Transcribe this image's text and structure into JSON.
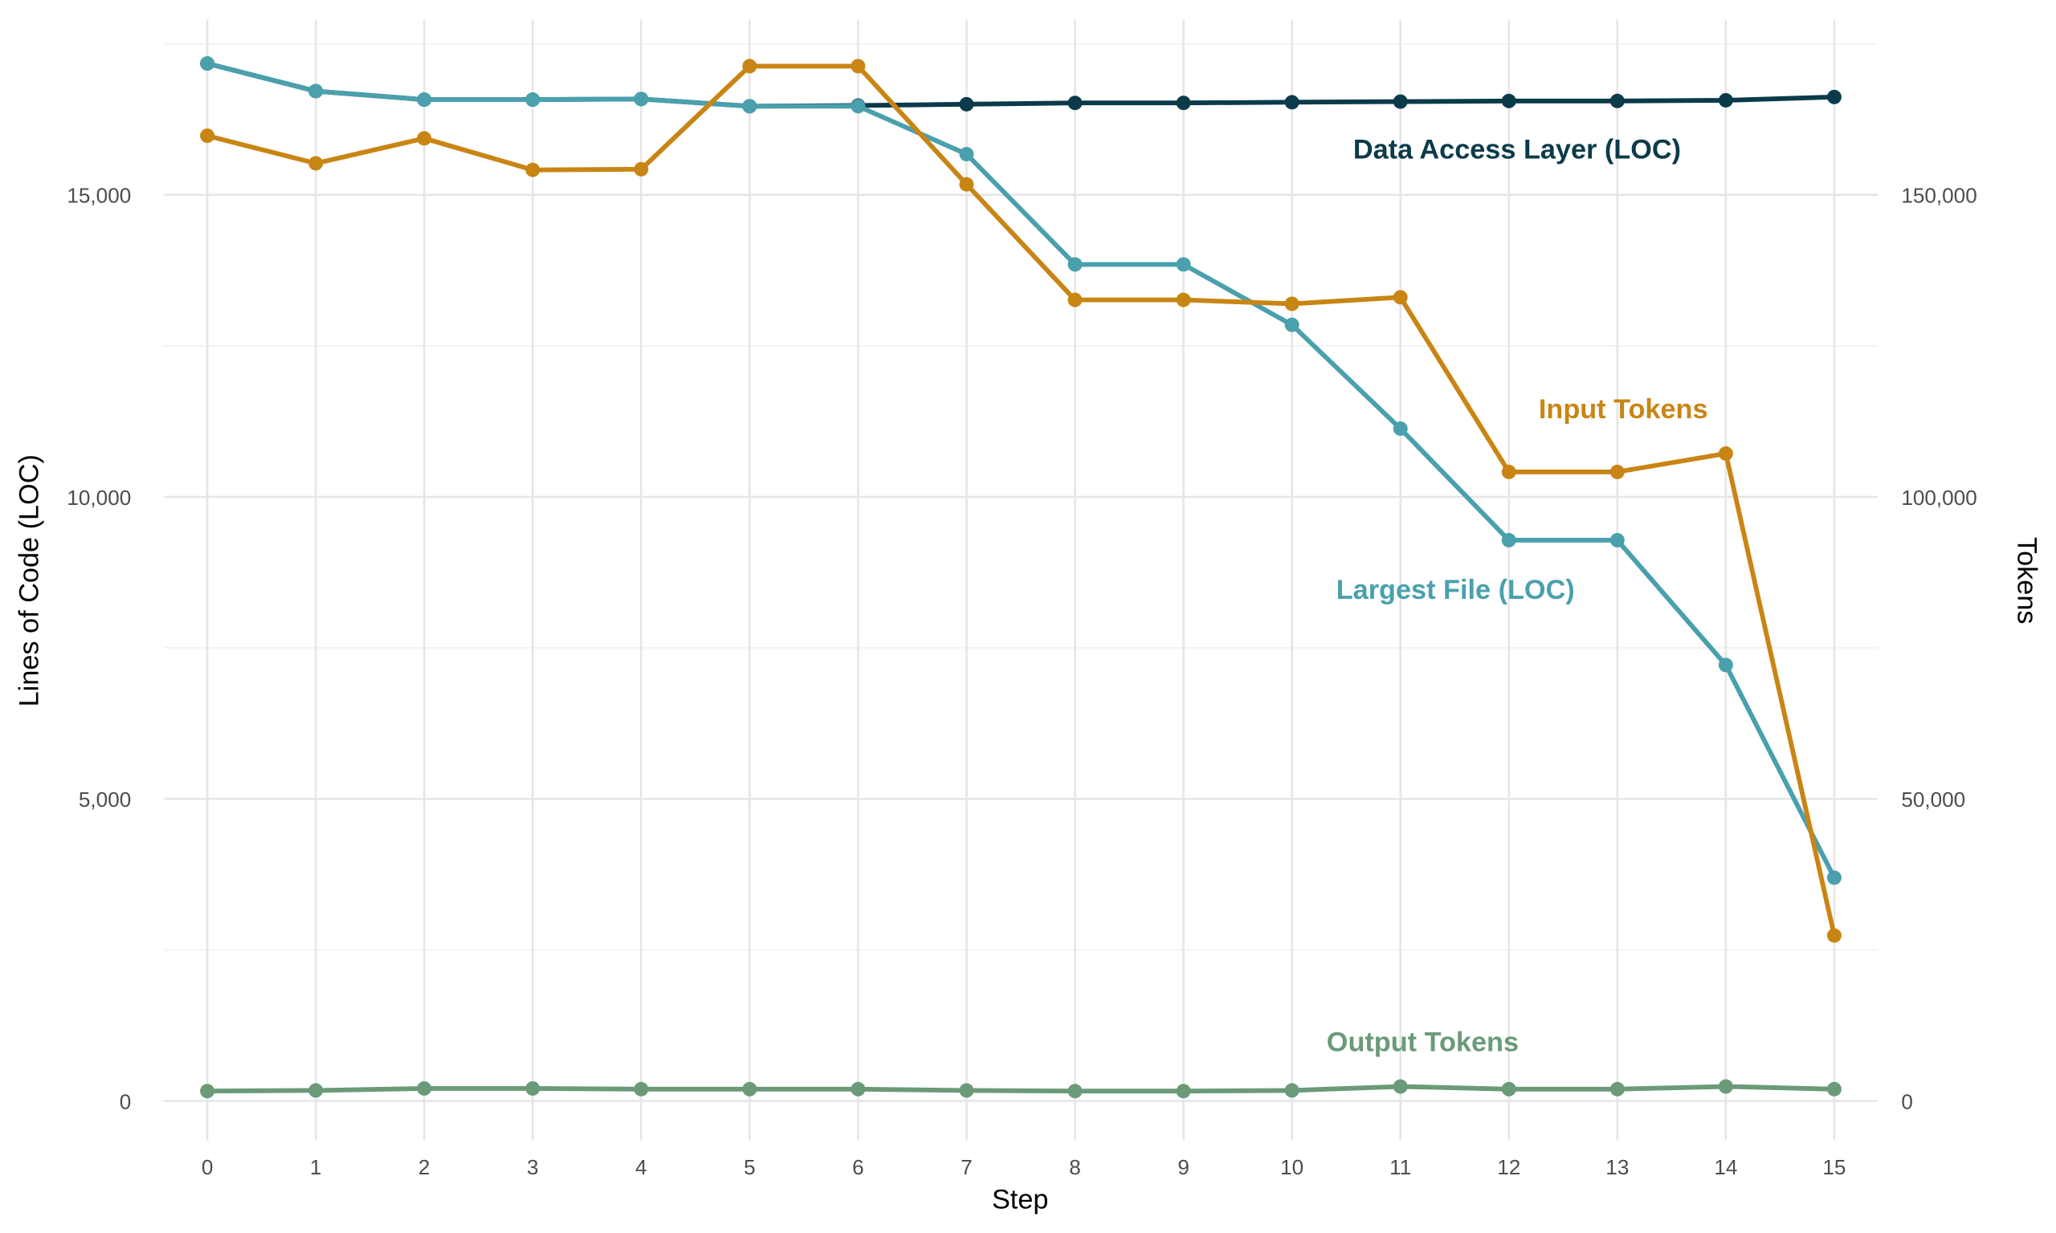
{
  "chart_data": {
    "type": "line",
    "x_label": "Step",
    "y_label": "Lines of Code (LOC)",
    "y2_label": "Tokens",
    "x": [
      0,
      1,
      2,
      3,
      4,
      5,
      6,
      7,
      8,
      9,
      10,
      11,
      12,
      13,
      14,
      15
    ],
    "xlim": [
      -0.4,
      15.4
    ],
    "xticks": [
      0,
      1,
      2,
      3,
      4,
      5,
      6,
      7,
      8,
      9,
      10,
      11,
      12,
      13,
      14,
      15
    ],
    "ylim": [
      -650,
      17900
    ],
    "yticks": [
      0,
      {
        "value": 5000,
        "label": "5,000"
      },
      {
        "value": 10000,
        "label": "10,000"
      },
      {
        "value": 15000,
        "label": "15,000"
      }
    ],
    "y_minor_ticks": [
      2500,
      7500,
      12500,
      17500
    ],
    "y2lim": [
      -6500,
      179000
    ],
    "y2ticks": [
      0,
      {
        "value": 50000,
        "label": "50,000"
      },
      {
        "value": 100000,
        "label": "100,000"
      },
      {
        "value": 150000,
        "label": "150,000"
      }
    ],
    "grid": true,
    "series": [
      {
        "name": "Data Access Layer (LOC)",
        "color": "#0b3b4a",
        "axis": "y",
        "values": [
          17174,
          16717,
          16576,
          16576,
          16587,
          16467,
          16478,
          16500,
          16522,
          16522,
          16533,
          16543,
          16554,
          16554,
          16565,
          16620
        ]
      },
      {
        "name": "Largest File (LOC)",
        "color": "#4aa0ad",
        "axis": "y",
        "values": [
          17174,
          16717,
          16576,
          16576,
          16587,
          16467,
          16467,
          15674,
          13848,
          13848,
          12848,
          11130,
          9283,
          9283,
          7217,
          3696
        ]
      },
      {
        "name": "Input Tokens",
        "color": "#c98514",
        "axis": "y2",
        "values": [
          159783,
          155217,
          159348,
          154130,
          154239,
          171304,
          171304,
          151739,
          132609,
          132609,
          131957,
          133043,
          104130,
          104130,
          107174,
          27391
        ]
      },
      {
        "name": "Output Tokens",
        "color": "#6b9a78",
        "axis": "y2",
        "values": [
          1630,
          1739,
          2065,
          2065,
          1957,
          1957,
          1957,
          1739,
          1630,
          1630,
          1739,
          2391,
          1957,
          1957,
          2391,
          1957
        ]
      }
    ]
  }
}
